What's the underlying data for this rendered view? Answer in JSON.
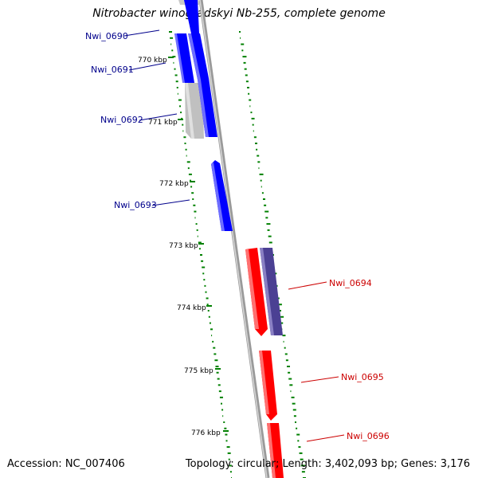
{
  "header": {
    "title": "Nitrobacter winogradskyi Nb-255, complete genome"
  },
  "footer": {
    "accession": "Accession: NC_007406",
    "summary": "Topology: circular; Length: 3,402,093 bp; Genes: 3,176"
  },
  "colors": {
    "forward_gene": "#0000ff",
    "reverse_gene": "#ff0000",
    "other_forward": "#c8c8c8",
    "other_reverse": "#4b4093",
    "backbone": "#8c8c8c",
    "gc_marker": "#008000"
  },
  "scale_ticks": [
    "770 kbp",
    "771 kbp",
    "772 kbp",
    "773 kbp",
    "774 kbp",
    "775 kbp",
    "776 kbp"
  ],
  "gene_labels": [
    "Nwi_0690",
    "Nwi_0691",
    "Nwi_0692",
    "Nwi_0693",
    "Nwi_0694",
    "Nwi_0695",
    "Nwi_0696"
  ]
}
